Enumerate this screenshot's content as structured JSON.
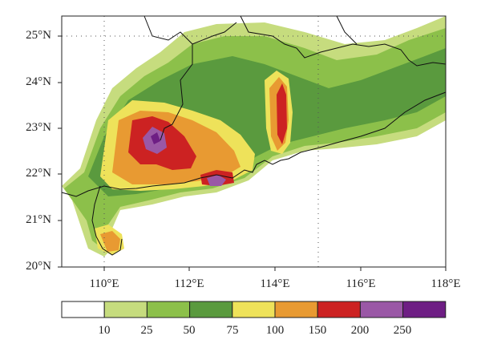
{
  "map": {
    "lat_labels": [
      "25°N",
      "24°N",
      "23°N",
      "22°N",
      "21°N",
      "20°N"
    ],
    "lon_labels": [
      "110°E",
      "112°E",
      "114°E",
      "116°E",
      "118°E"
    ]
  },
  "legend": {
    "labels": [
      "10",
      "25",
      "50",
      "75",
      "100",
      "150",
      "200",
      "250"
    ],
    "colors": [
      "#ffffff",
      "#c6dc7e",
      "#8cc04a",
      "#5a9a3e",
      "#eee25a",
      "#e89a32",
      "#cc2222",
      "#9a58a6",
      "#6e1e84"
    ]
  }
}
